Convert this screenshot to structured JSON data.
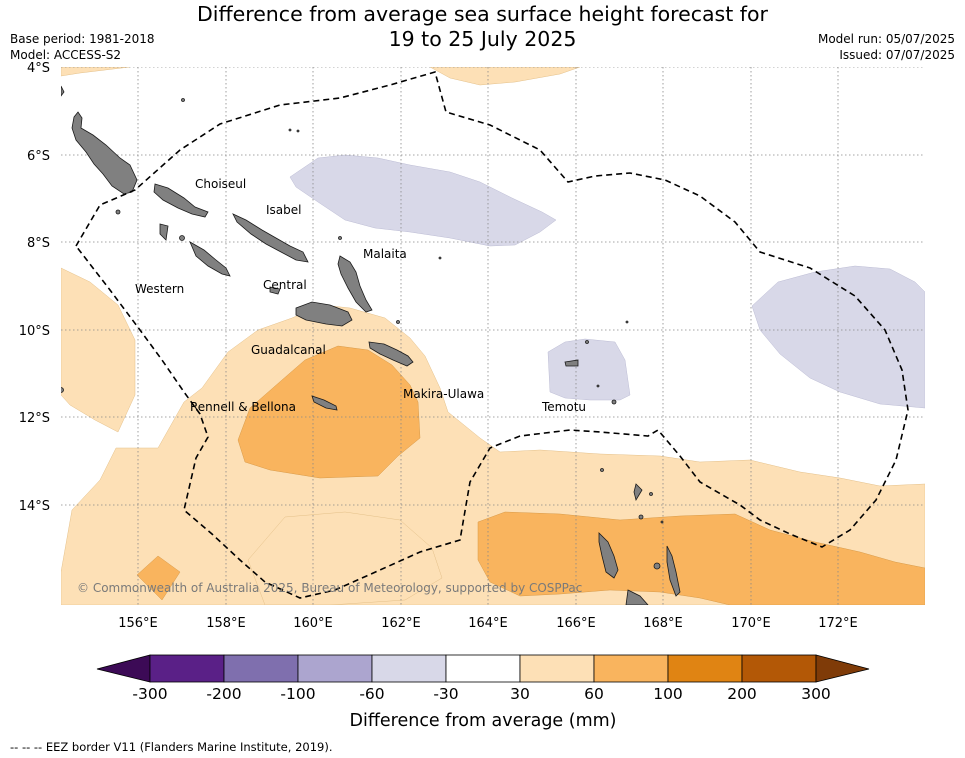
{
  "title_line1": "Difference from average sea surface height forecast for",
  "title_line2": "19 to 25 July 2025",
  "meta_left": {
    "base_period": "Base period: 1981-2018",
    "model": "Model: ACCESS-S2"
  },
  "meta_right": {
    "model_run": "Model run: 05/07/2025",
    "issued": "Issued: 07/07/2025"
  },
  "map": {
    "lat_ticks": [
      "4°S",
      "6°S",
      "8°S",
      "10°S",
      "12°S",
      "14°S"
    ],
    "lon_ticks": [
      "156°E",
      "158°E",
      "160°E",
      "162°E",
      "164°E",
      "166°E",
      "168°E",
      "170°E",
      "172°E"
    ],
    "provinces": [
      "Choiseul",
      "Isabel",
      "Malaita",
      "Western",
      "Central",
      "Guadalcanal",
      "Makira-Ulawa",
      "Rennell & Bellona",
      "Temotu"
    ],
    "copyright": "© Commonwealth of Australia 2025, Bureau of Meteorology, supported by COSPPac",
    "eez_style": "dashed black",
    "land_color": "#808080"
  },
  "colorbar": {
    "title": "Difference from average (mm)",
    "tick_labels": [
      "-300",
      "-200",
      "-100",
      "-60",
      "-30",
      "30",
      "60",
      "100",
      "200",
      "300"
    ],
    "colors": [
      "#3c0a56",
      "#5a2087",
      "#7f6fae",
      "#aca5cf",
      "#d8d8e8",
      "#ffffff",
      "#fde0b6",
      "#f9b45e",
      "#e08413",
      "#b35806",
      "#7f3b08"
    ]
  },
  "footnote": "-- -- -- EEZ border V11 (Flanders Marine Institute, 2019)."
}
